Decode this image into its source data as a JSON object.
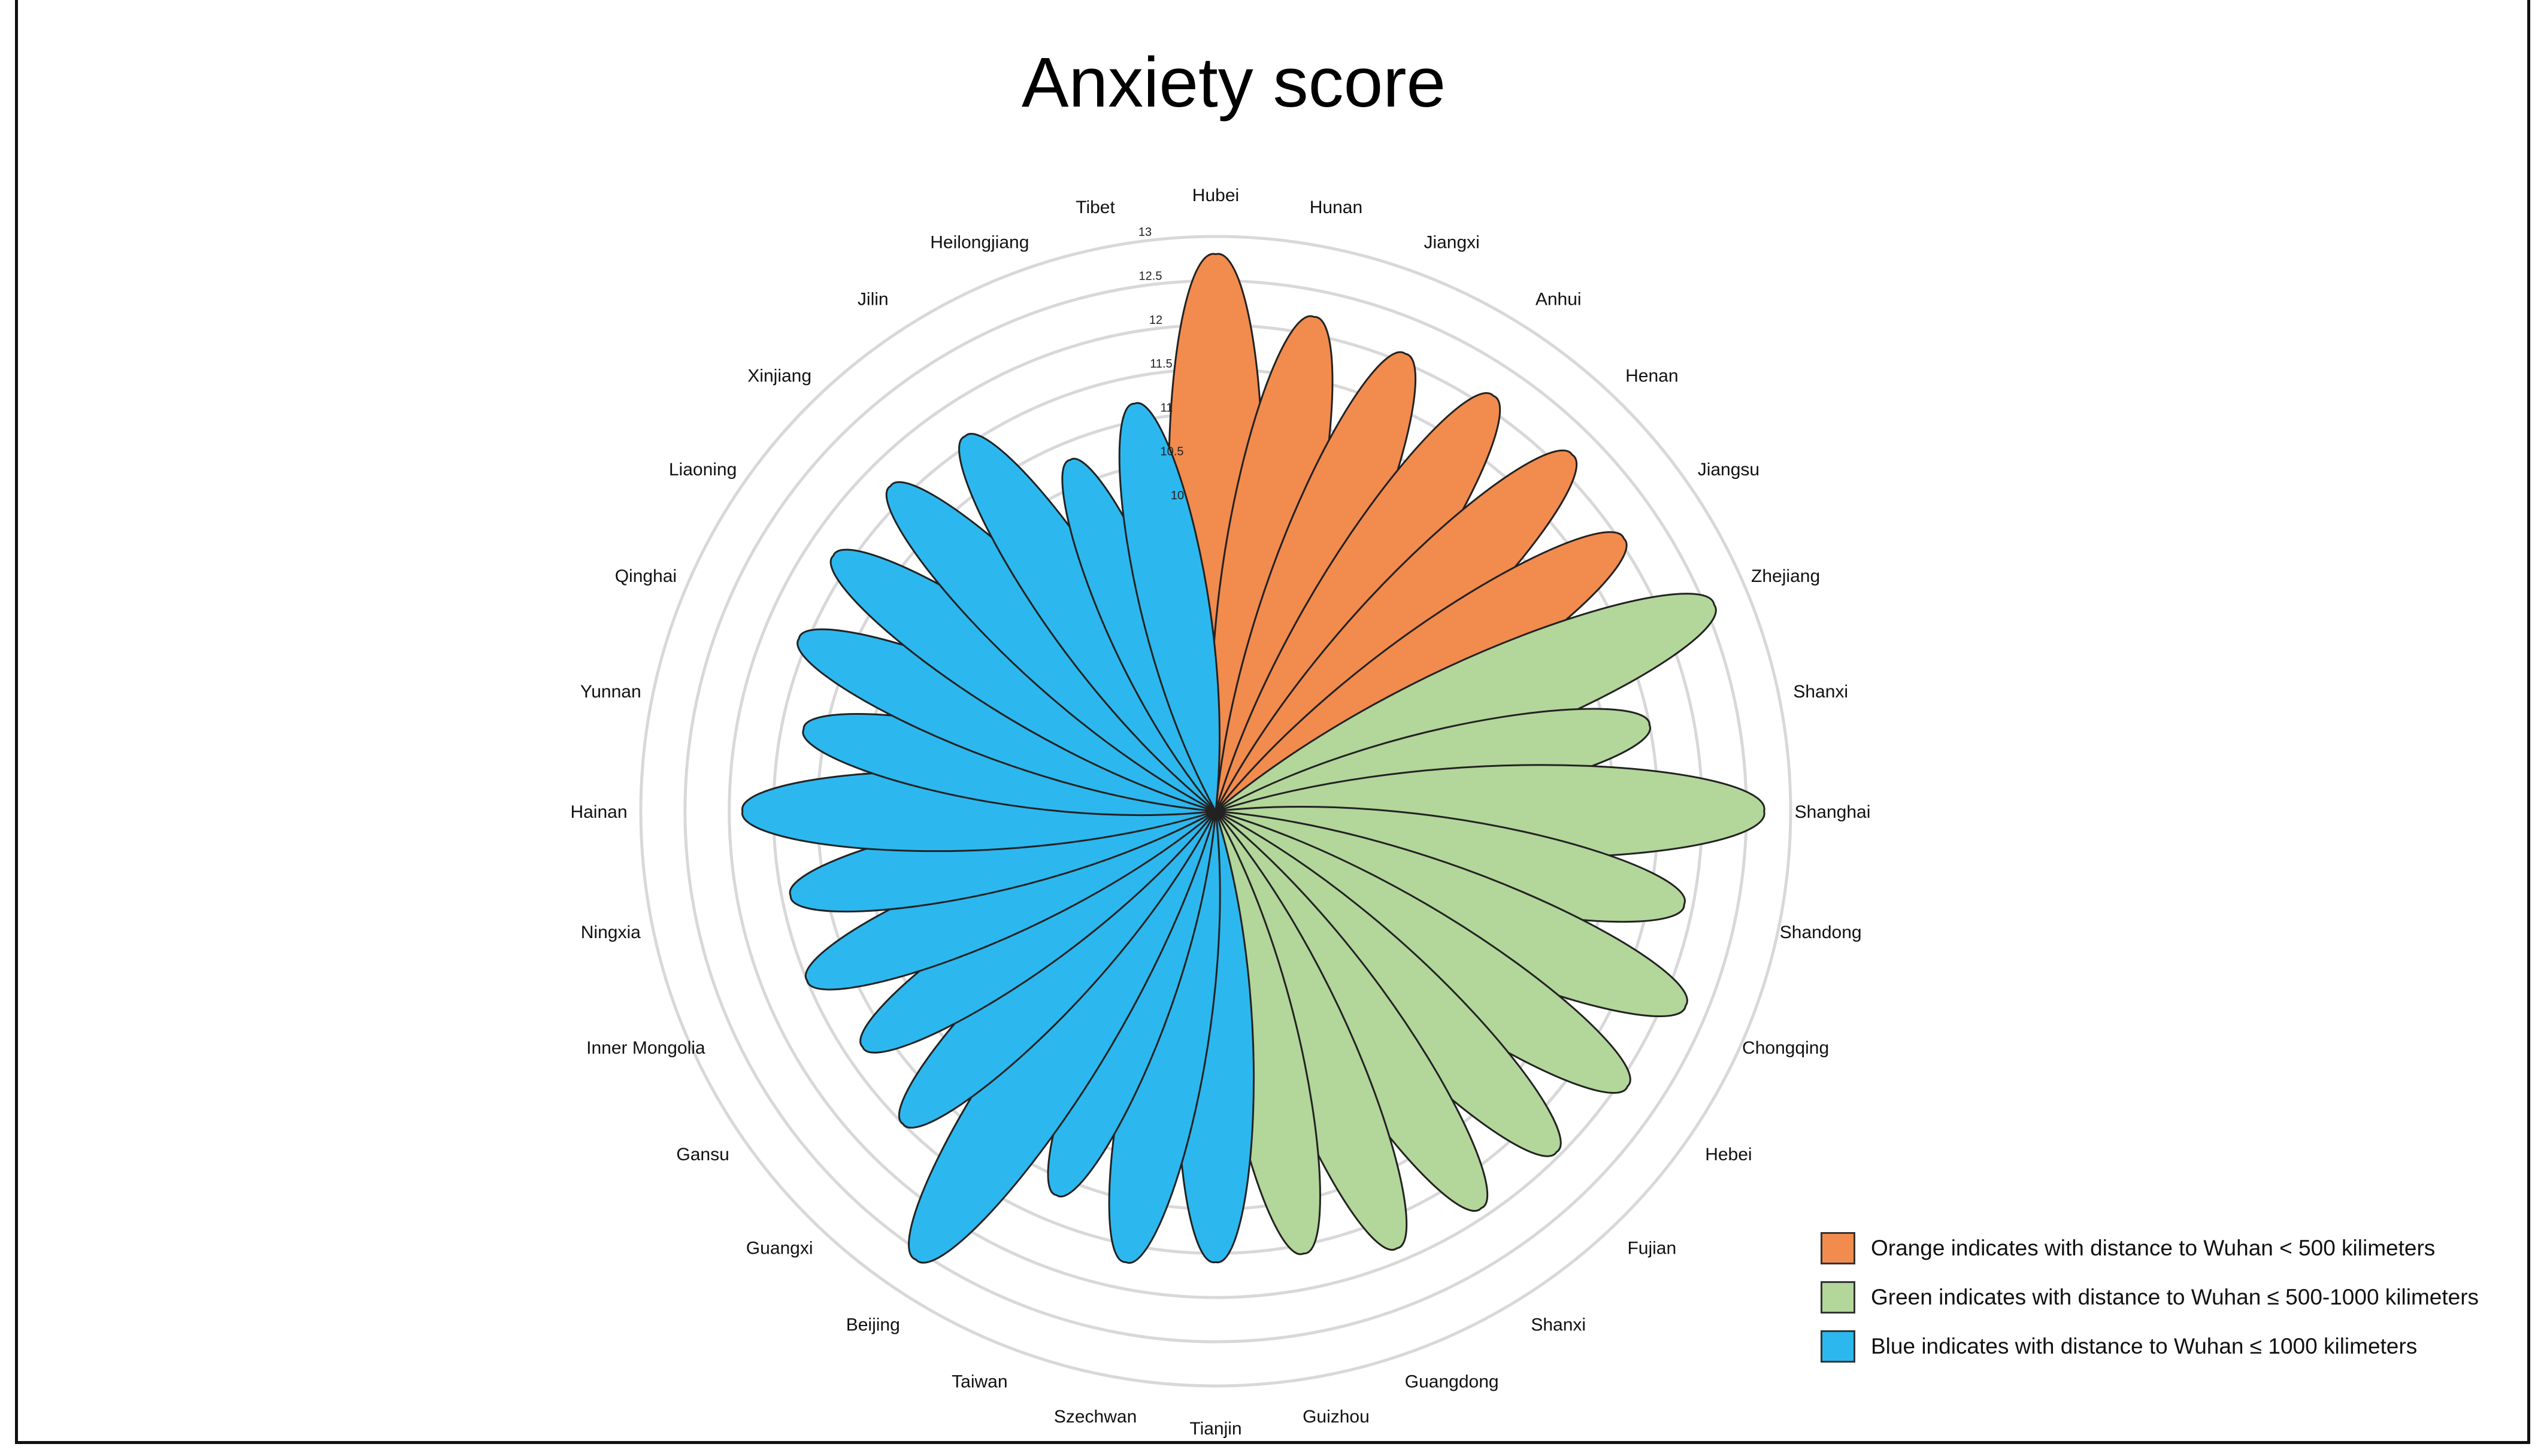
{
  "chart_data": {
    "type": "polar-bar",
    "title": "Anxiety score",
    "r_ticks": [
      "10",
      "10.5",
      "11",
      "11.5",
      "12",
      "12.5",
      "13"
    ],
    "r_tick_values": [
      10,
      10.5,
      11,
      11.5,
      12,
      12.5,
      13
    ],
    "rlim": [
      6.5,
      13
    ],
    "grid": true,
    "legend_position": "bottom-right",
    "colors": {
      "orange": "#F28B4E",
      "green": "#B3D69A",
      "blue": "#2CB8EE",
      "outline": "#222222"
    },
    "categories": [
      "Hubei",
      "Hunan",
      "Jiangxi",
      "Anhui",
      "Henan",
      "Jiangsu",
      "Zhejiang",
      "Shanxi",
      "Shanghai",
      "Shandong",
      "Chongqing",
      "Hebei",
      "Fujian",
      "Shanxi",
      "Guangdong",
      "Guizhou",
      "Tianjin",
      "Szechwan",
      "Taiwan",
      "Beijing",
      "Guangxi",
      "Gansu",
      "Inner Mongolia",
      "Ningxia",
      "Hainan",
      "Yunnan",
      "Qinghai",
      "Liaoning",
      "Xinjiang",
      "Jilin",
      "Heilongjiang",
      "Tibet"
    ],
    "values": [
      12.8,
      12.2,
      12.1,
      12.15,
      12.2,
      12.05,
      12.6,
      11.5,
      12.7,
      11.9,
      12.25,
      12.1,
      11.95,
      11.9,
      11.85,
      11.6,
      11.6,
      11.7,
      11.2,
      12.6,
      11.5,
      11.3,
      11.5,
      11.4,
      11.85,
      11.25,
      11.6,
      11.7,
      11.7,
      11.6,
      10.8,
      11.2
    ],
    "groups": [
      "orange",
      "orange",
      "orange",
      "orange",
      "orange",
      "orange",
      "green",
      "green",
      "green",
      "green",
      "green",
      "green",
      "green",
      "green",
      "green",
      "green",
      "blue",
      "blue",
      "blue",
      "blue",
      "blue",
      "blue",
      "blue",
      "blue",
      "blue",
      "blue",
      "blue",
      "blue",
      "blue",
      "blue",
      "blue",
      "blue"
    ]
  },
  "legend": [
    {
      "label": "Orange indicates with distance to Wuhan < 500 kilimeters",
      "color": "#F28B4E"
    },
    {
      "label": "Green indicates with distance to Wuhan ≤ 500-1000 kilimeters",
      "color": "#B3D69A"
    },
    {
      "label": "Blue indicates with distance to Wuhan ≤ 1000 kilimeters",
      "color": "#2CB8EE"
    }
  ]
}
